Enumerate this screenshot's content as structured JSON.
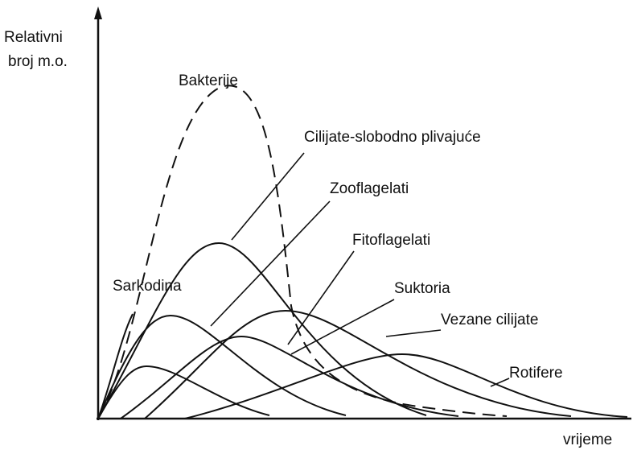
{
  "axes": {
    "y_label": [
      "Relativni",
      "broj m.o."
    ],
    "x_label": "vrijeme"
  },
  "curves": [
    {
      "label": "Bakterije"
    },
    {
      "label": "Cilijate-slobodno plivajuće"
    },
    {
      "label": "Zooflagelati"
    },
    {
      "label": "Fitoflagelati"
    },
    {
      "label": "Suktoria"
    },
    {
      "label": "Vezane cilijate"
    },
    {
      "label": "Rotifere"
    },
    {
      "label": "Sarkodina"
    }
  ]
}
